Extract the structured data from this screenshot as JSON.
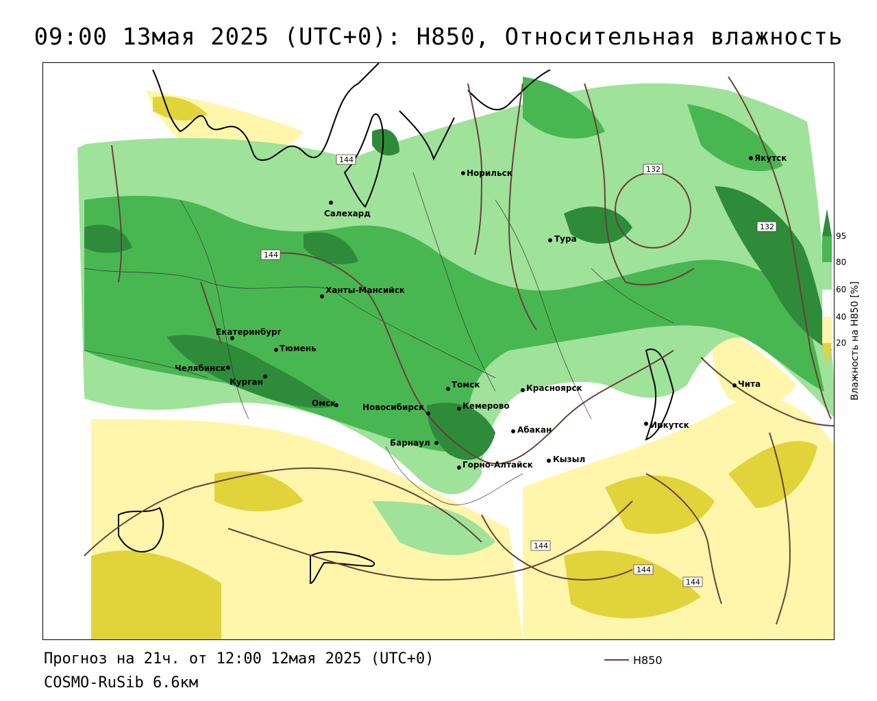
{
  "title": "09:00 13мая 2025 (UTC+0): H850, Относительная влажность",
  "footer": {
    "forecast": "Прогноз на 21ч. от 12:00 12мая 2025 (UTC+0)",
    "model": "COSMO-RuSib 6.6км"
  },
  "legend": {
    "series_label": "H850",
    "line_color": "#6b3f36"
  },
  "colorbar": {
    "title": "Влажность на H850 [%]",
    "ticks": [
      "95",
      "80",
      "60",
      "40",
      "20"
    ],
    "colors": {
      "gt95": "#2e8b3a",
      "80_95": "#49b751",
      "60_80": "#9fe29a",
      "40_60": "#ffffff",
      "20_40": "#fff6ac",
      "lt20": "#e0d43a"
    }
  },
  "contour_labels": [
    "132",
    "132",
    "144",
    "144",
    "144",
    "144",
    "144"
  ],
  "cities": [
    {
      "name": "Норильск"
    },
    {
      "name": "Якутск"
    },
    {
      "name": "Салехард"
    },
    {
      "name": "Тура"
    },
    {
      "name": "Ханты-Мансийск"
    },
    {
      "name": "Екатеринбург"
    },
    {
      "name": "Тюмень"
    },
    {
      "name": "Челябинск"
    },
    {
      "name": "Курган"
    },
    {
      "name": "Омск"
    },
    {
      "name": "Новосибирск"
    },
    {
      "name": "Томск"
    },
    {
      "name": "Кемерово"
    },
    {
      "name": "Красноярск"
    },
    {
      "name": "Барнаул"
    },
    {
      "name": "Абакан"
    },
    {
      "name": "Горно-Алтайск"
    },
    {
      "name": "Кызыл"
    },
    {
      "name": "Иркутск"
    },
    {
      "name": "Чита"
    }
  ]
}
